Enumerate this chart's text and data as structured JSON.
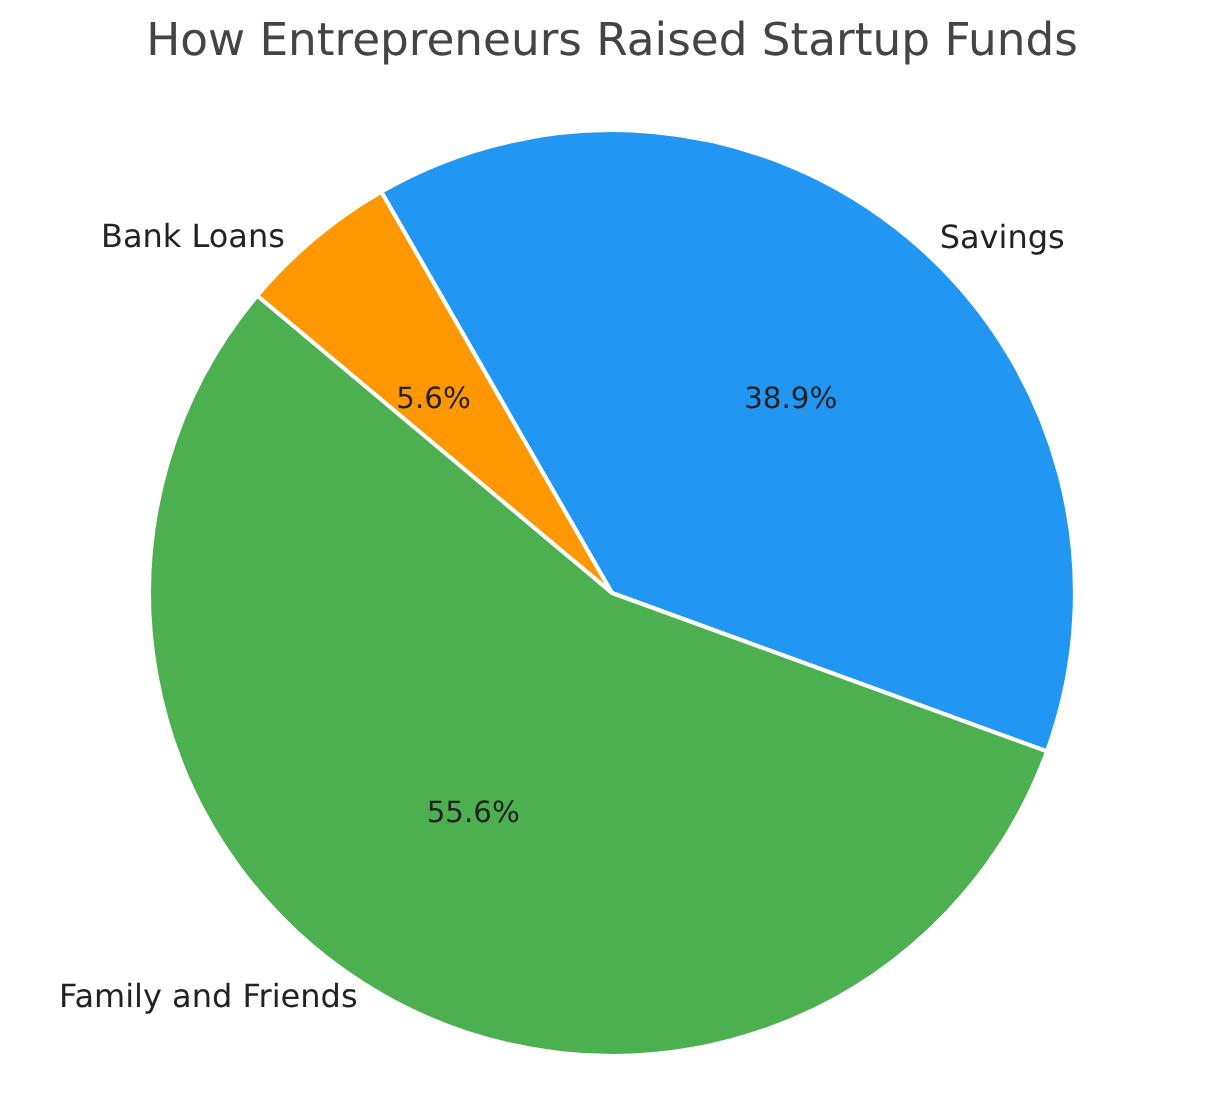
{
  "chart_data": {
    "type": "pie",
    "title": "How Entrepreneurs Raised Startup Funds",
    "categories": [
      "Savings",
      "Bank Loans",
      "Family and Friends"
    ],
    "values": [
      38.9,
      5.6,
      55.6
    ],
    "colors": [
      "#2196f3",
      "#ff9800",
      "#4caf50"
    ],
    "value_labels": [
      "38.9%",
      "5.6%",
      "55.6%"
    ]
  }
}
